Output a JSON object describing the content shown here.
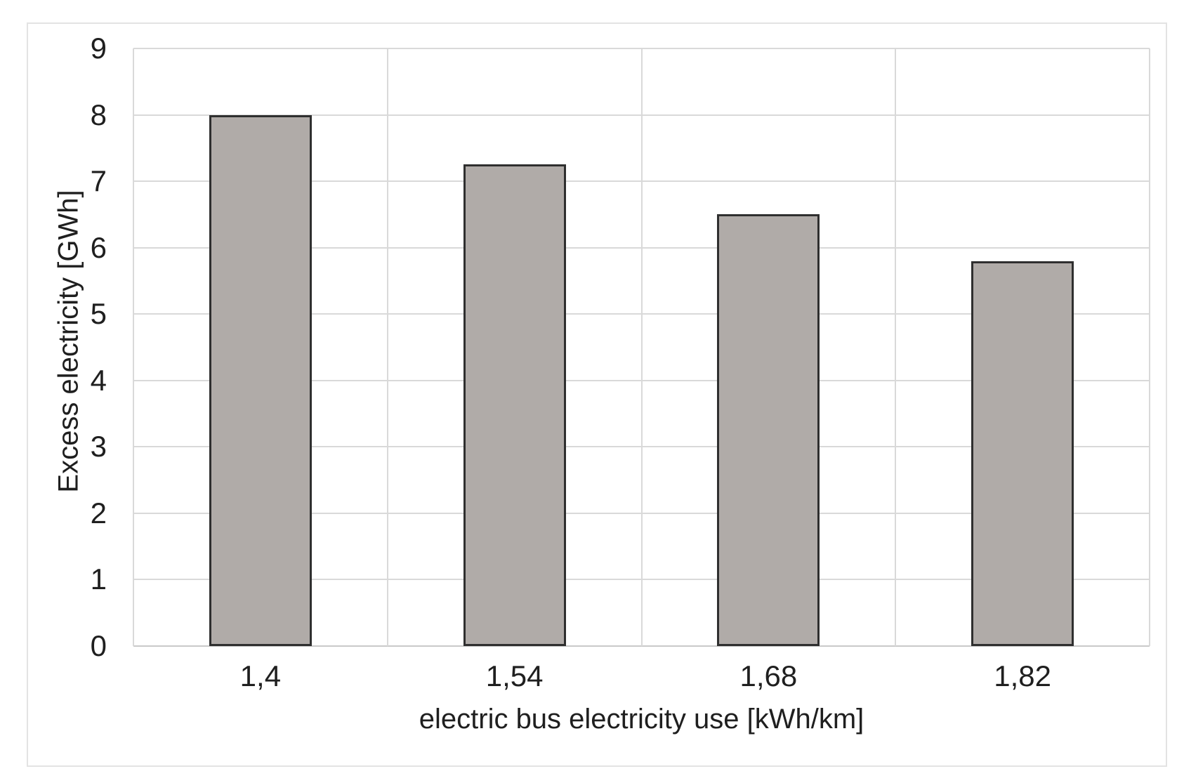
{
  "chart_data": {
    "type": "bar",
    "title": "",
    "categories": [
      "1,4",
      "1,54",
      "1,68",
      "1,82"
    ],
    "values": [
      8.0,
      7.25,
      6.5,
      5.8
    ],
    "xlabel": "electric bus electricity use [kWh/km]",
    "ylabel": "Excess electricity [GWh]",
    "ylim": [
      0,
      9
    ],
    "ytick_step": 1,
    "yticks": [
      "0",
      "1",
      "2",
      "3",
      "4",
      "5",
      "6",
      "7",
      "8",
      "9"
    ],
    "grid": "horizontal and vertical category boundaries",
    "legend_position": "none",
    "colors": {
      "bar_fill": "#b0aba8",
      "bar_border": "#2f2f2f",
      "gridline": "#d9d9d9",
      "axis_line": "#c9c9c9",
      "text": "#1f1f1f",
      "frame_border": "#e3e3e3",
      "background": "#ffffff"
    }
  }
}
